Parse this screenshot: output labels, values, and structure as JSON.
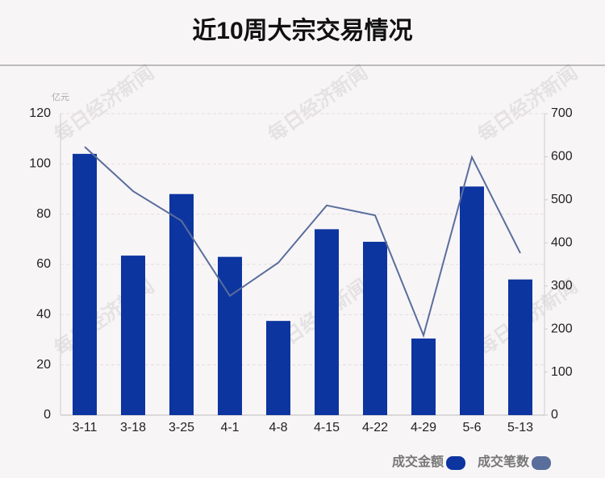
{
  "chart_data": {
    "type": "bar",
    "title": "近10周大宗交易情况",
    "y_unit": "亿元",
    "watermark": "每日经济新闻",
    "categories": [
      "3-11",
      "3-18",
      "3-25",
      "4-1",
      "4-8",
      "4-15",
      "4-22",
      "4-29",
      "5-6",
      "5-13"
    ],
    "series": [
      {
        "name": "成交金额",
        "type": "bar",
        "color": "#0d35a0",
        "values": [
          104,
          63.5,
          88,
          63,
          37.5,
          74,
          69,
          30.5,
          91,
          54
        ]
      },
      {
        "name": "成交笔数",
        "type": "line",
        "axis": "y2",
        "color": "#5a6e9c",
        "values": [
          623,
          520,
          451,
          277,
          354,
          487,
          464,
          185,
          599,
          376
        ]
      }
    ],
    "ylim": [
      0,
      120
    ],
    "yticks": [
      0,
      20,
      40,
      60,
      80,
      100,
      120
    ],
    "y2lim": [
      0,
      700
    ],
    "y2ticks": [
      0,
      100,
      200,
      300,
      400,
      500,
      600,
      700
    ],
    "grid": true,
    "legend": "bottom-right"
  }
}
